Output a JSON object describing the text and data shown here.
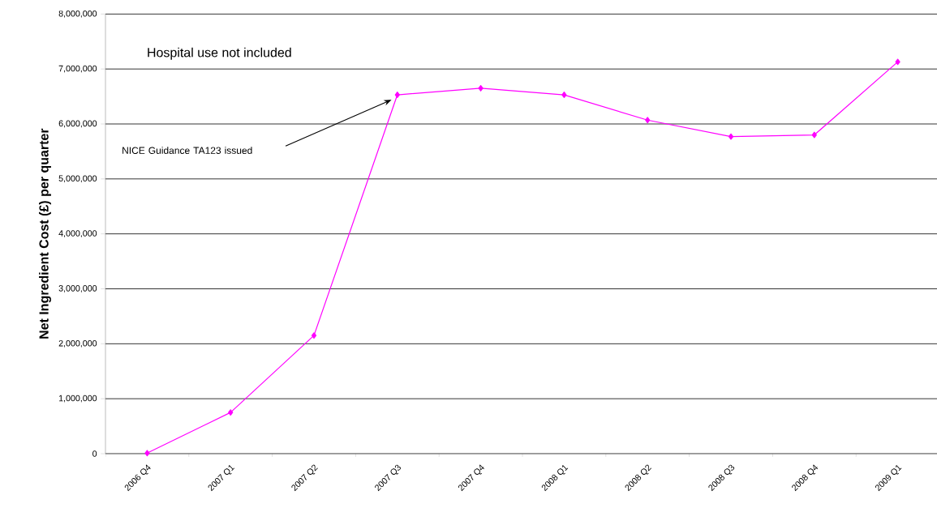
{
  "chart_data": {
    "type": "line",
    "ylabel": "Net Ingredient Cost (£) per quarter",
    "categories": [
      "2006 Q4",
      "2007 Q1",
      "2007 Q2",
      "2007 Q3",
      "2007 Q4",
      "2008 Q1",
      "2008 Q2",
      "2008 Q3",
      "2008 Q4",
      "2009 Q1"
    ],
    "series": [
      {
        "color": "#ff00ff",
        "values": [
          10000,
          750000,
          2150000,
          6530000,
          6650000,
          6530000,
          6070000,
          5770000,
          5800000,
          7130000
        ]
      }
    ],
    "ylim": [
      0,
      8000000
    ],
    "yticks": [
      {
        "value": 0,
        "label": "0"
      },
      {
        "value": 1000000,
        "label": "1,000,000"
      },
      {
        "value": 2000000,
        "label": "2,000,000"
      },
      {
        "value": 3000000,
        "label": "3,000,000"
      },
      {
        "value": 4000000,
        "label": "4,000,000"
      },
      {
        "value": 5000000,
        "label": "5,000,000"
      },
      {
        "value": 6000000,
        "label": "6,000,000"
      },
      {
        "value": 7000000,
        "label": "7,000,000"
      },
      {
        "value": 8000000,
        "label": "8,000,000"
      }
    ],
    "grid": "y",
    "marker": "diamond",
    "line_style": "solid",
    "annotations": [
      "Hospital use not included",
      "NICE Guidance TA123 issued"
    ]
  }
}
